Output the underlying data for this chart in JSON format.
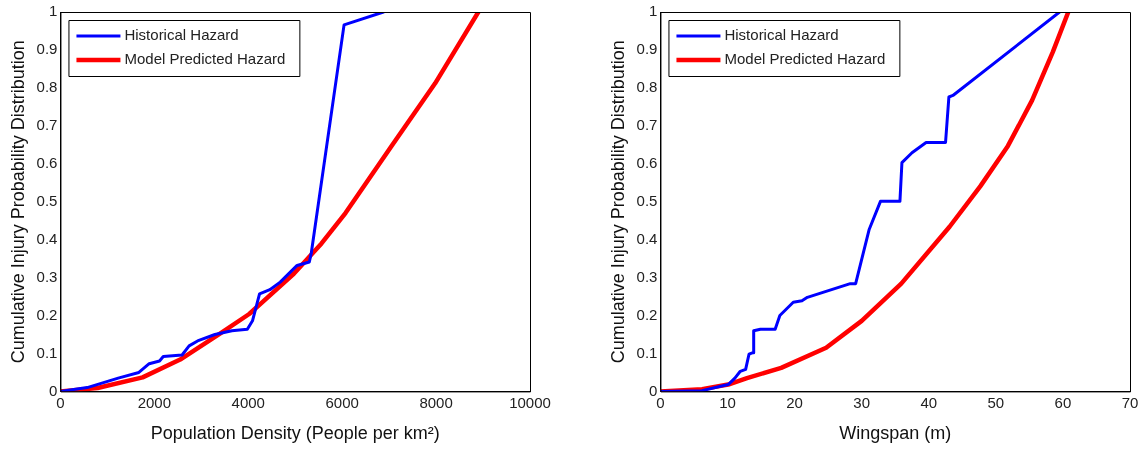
{
  "chart_data": [
    {
      "type": "line",
      "xlabel": "Population Density (People per km²)",
      "ylabel": "Cumulative Injury Probability Distribution",
      "xlim": [
        0,
        10000
      ],
      "xticks": [
        0,
        2000,
        4000,
        6000,
        8000,
        10000
      ],
      "ylim": [
        0,
        1
      ],
      "yticks": [
        0,
        0.1,
        0.2,
        0.3,
        0.4,
        0.5,
        0.6,
        0.7,
        0.8,
        0.9,
        1
      ],
      "grid": false,
      "legend": "top left",
      "marker": "none",
      "series": [
        {
          "name": "Historical Hazard",
          "color": "#0000ff",
          "x": [
            0,
            570,
            1230,
            1670,
            1890,
            2110,
            2190,
            2590,
            2740,
            2920,
            3290,
            3650,
            3980,
            4090,
            4240,
            4460,
            4680,
            5040,
            5300,
            5340,
            6040,
            6880
          ],
          "values": [
            0,
            0.01,
            0.035,
            0.05,
            0.073,
            0.08,
            0.092,
            0.096,
            0.12,
            0.133,
            0.15,
            0.16,
            0.164,
            0.186,
            0.257,
            0.268,
            0.288,
            0.332,
            0.341,
            0.363,
            0.966,
            1
          ]
        },
        {
          "name": "Model Predicted Hazard",
          "color": "#ff0000",
          "x": [
            0,
            790,
            1750,
            2550,
            3430,
            4020,
            4970,
            5560,
            6070,
            7030,
            7980,
            8900
          ],
          "values": [
            0,
            0.009,
            0.037,
            0.084,
            0.155,
            0.204,
            0.31,
            0.39,
            0.47,
            0.643,
            0.812,
            1
          ]
        }
      ]
    },
    {
      "type": "line",
      "xlabel": "Wingspan (m)",
      "ylabel": "Cumulative Injury Probability Distribution",
      "xlim": [
        0,
        70
      ],
      "xticks": [
        0,
        10,
        20,
        30,
        40,
        50,
        60,
        70
      ],
      "ylim": [
        0,
        1
      ],
      "yticks": [
        0,
        0.1,
        0.2,
        0.3,
        0.4,
        0.5,
        0.6,
        0.7,
        0.8,
        0.9,
        1
      ],
      "grid": false,
      "legend": "top left",
      "marker": "none",
      "series": [
        {
          "name": "Historical Hazard",
          "color": "#0000ff",
          "x": [
            0,
            6.2,
            10.1,
            11.1,
            11.9,
            12.7,
            13.2,
            13.8,
            13.9,
            14.9,
            17.1,
            17.8,
            19.8,
            21.1,
            21.9,
            28.3,
            29.1,
            31.1,
            32.8,
            35.7,
            36,
            37.5,
            39.6,
            42.5,
            43,
            43.6,
            59.5
          ],
          "values": [
            0,
            0.002,
            0.018,
            0.035,
            0.053,
            0.058,
            0.098,
            0.102,
            0.16,
            0.164,
            0.164,
            0.2,
            0.235,
            0.239,
            0.248,
            0.284,
            0.284,
            0.426,
            0.501,
            0.501,
            0.603,
            0.629,
            0.656,
            0.656,
            0.776,
            0.78,
            1
          ]
        },
        {
          "name": "Model Predicted Hazard",
          "color": "#ff0000",
          "x": [
            0,
            6.2,
            10.1,
            12.9,
            18,
            24.7,
            30,
            35.9,
            43.1,
            47.7,
            51.8,
            55.4,
            58.5,
            60.8
          ],
          "values": [
            0,
            0.006,
            0.018,
            0.035,
            0.062,
            0.115,
            0.186,
            0.284,
            0.434,
            0.541,
            0.647,
            0.767,
            0.895,
            1
          ]
        }
      ]
    }
  ]
}
